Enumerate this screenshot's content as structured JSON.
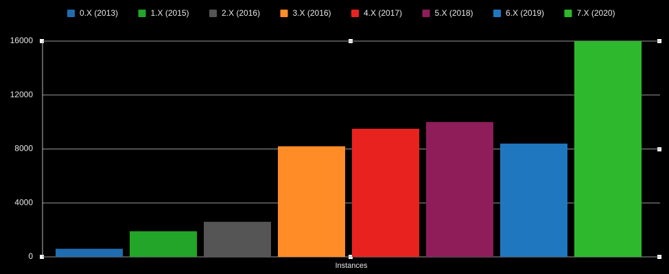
{
  "chart_data": {
    "type": "bar",
    "categories": [
      "Instances"
    ],
    "series": [
      {
        "name": "0.X (2013)",
        "color": "#1f6db0",
        "values": [
          600
        ]
      },
      {
        "name": "1.X (2015)",
        "color": "#22a528",
        "values": [
          1900
        ]
      },
      {
        "name": "2.X (2016)",
        "color": "#555555",
        "values": [
          2600
        ]
      },
      {
        "name": "3.X (2016)",
        "color": "#ff8c26",
        "values": [
          8200
        ]
      },
      {
        "name": "4.X (2017)",
        "color": "#e8231f",
        "values": [
          9500
        ]
      },
      {
        "name": "5.X (2018)",
        "color": "#8e1d5a",
        "values": [
          10000
        ]
      },
      {
        "name": "6.X (2019)",
        "color": "#1f77c0",
        "values": [
          8400
        ]
      },
      {
        "name": "7.X (2020)",
        "color": "#2db82d",
        "values": [
          16000
        ]
      }
    ],
    "ylim": [
      0,
      16000
    ],
    "yticks": [
      0,
      4000,
      8000,
      12000,
      16000
    ],
    "grid": true,
    "legend": "top"
  }
}
